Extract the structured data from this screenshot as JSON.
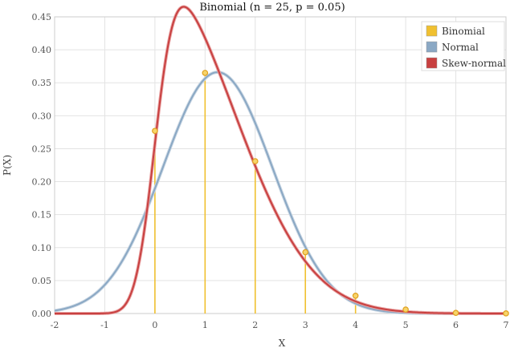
{
  "chart_data": {
    "type": "line",
    "title": "Binomial (n = 25, p = 0.05)",
    "xlabel": "X",
    "ylabel": "P(X)",
    "xlim": [
      -2,
      7
    ],
    "ylim": [
      0,
      0.45
    ],
    "x_ticks": [
      "-2",
      "-1",
      "0",
      "1",
      "2",
      "3",
      "4",
      "5",
      "6",
      "7"
    ],
    "y_ticks": [
      "0.00",
      "0.05",
      "0.10",
      "0.15",
      "0.20",
      "0.25",
      "0.30",
      "0.35",
      "0.40",
      "0.45"
    ],
    "grid": true,
    "legend_position": "top-right",
    "binomial": {
      "name": "Binomial",
      "color": "#f0c030",
      "x": [
        0,
        1,
        2,
        3,
        4,
        5,
        6,
        7
      ],
      "y": [
        0.277,
        0.365,
        0.231,
        0.093,
        0.027,
        0.006,
        0.001,
        0.0002
      ]
    },
    "normal": {
      "name": "Normal",
      "color": "#8aa8c4",
      "mean": 1.25,
      "sd": 1.09
    },
    "skew_normal": {
      "name": "Skew-normal",
      "color": "#c84040",
      "location": 0.0,
      "scale": 1.55,
      "shape": 5.0
    }
  }
}
